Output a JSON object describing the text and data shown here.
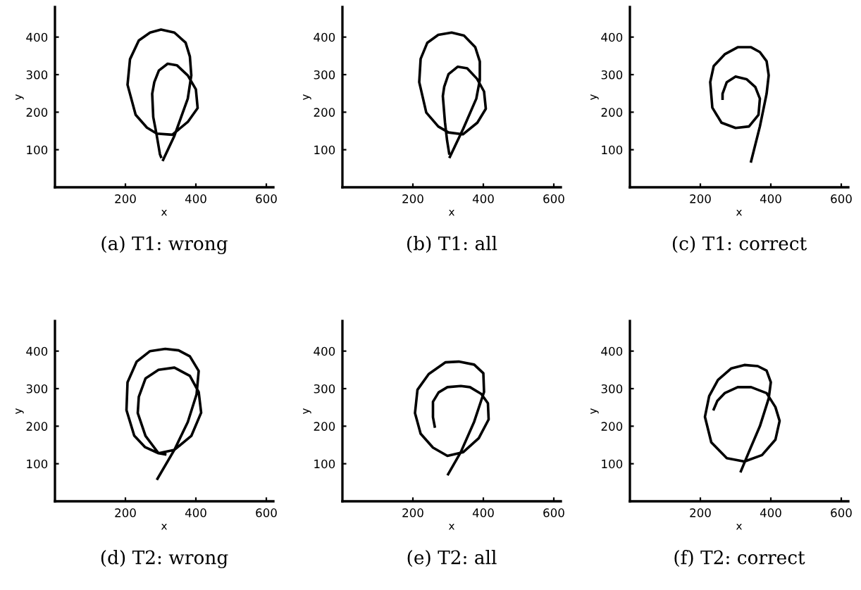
{
  "chart_data": [
    {
      "type": "line",
      "title": "(a) T1: wrong",
      "xlabel": "x",
      "ylabel": "y",
      "xlim": [
        0,
        620
      ],
      "ylim": [
        0,
        480
      ],
      "xticks": [
        200,
        400,
        600
      ],
      "yticks": [
        100,
        200,
        300,
        400
      ],
      "grid": false,
      "marker": "none",
      "line_style": "solid",
      "series": [
        {
          "color": "#000000",
          "x": [
            307,
            339,
            377,
            387,
            383,
            371,
            339,
            301,
            270,
            238,
            213,
            206,
            229,
            261,
            289,
            333,
            377,
            405,
            400,
            377,
            346,
            320,
            295,
            282,
            276,
            279,
            288,
            298,
            301
          ],
          "values": [
            73,
            137,
            236,
            298,
            348,
            385,
            412,
            420,
            412,
            391,
            341,
            273,
            193,
            159,
            143,
            140,
            174,
            211,
            261,
            298,
            325,
            329,
            311,
            280,
            249,
            187,
            143,
            88,
            81
          ]
        }
      ]
    },
    {
      "type": "line",
      "title": "(b) T1: all",
      "xlabel": "x",
      "ylabel": "y",
      "xlim": [
        0,
        620
      ],
      "ylim": [
        0,
        480
      ],
      "xticks": [
        200,
        400,
        600
      ],
      "yticks": [
        100,
        200,
        300,
        400
      ],
      "grid": false,
      "marker": "none",
      "line_style": "solid",
      "series": [
        {
          "color": "#000000",
          "x": [
            305,
            343,
            380,
            390,
            390,
            377,
            345,
            310,
            272,
            241,
            222,
            218,
            238,
            272,
            301,
            342,
            383,
            407,
            402,
            382,
            354,
            327,
            301,
            289,
            285,
            291,
            297,
            303
          ],
          "values": [
            81,
            156,
            236,
            286,
            335,
            373,
            404,
            412,
            406,
            385,
            342,
            280,
            199,
            162,
            146,
            141,
            172,
            209,
            255,
            289,
            317,
            321,
            301,
            268,
            243,
            174,
            125,
            90
          ]
        }
      ]
    },
    {
      "type": "line",
      "title": "(c) T1: correct",
      "xlabel": "x",
      "ylabel": "y",
      "xlim": [
        0,
        620
      ],
      "ylim": [
        0,
        480
      ],
      "xticks": [
        200,
        400,
        600
      ],
      "yticks": [
        100,
        200,
        300,
        400
      ],
      "grid": false,
      "marker": "none",
      "line_style": "solid",
      "series": [
        {
          "color": "#000000",
          "x": [
            344,
            369,
            388,
            394,
            388,
            369,
            344,
            306,
            269,
            238,
            228,
            234,
            260,
            300,
            338,
            365,
            369,
            356,
            331,
            300,
            275,
            263,
            263
          ],
          "values": [
            69,
            162,
            249,
            298,
            336,
            360,
            373,
            373,
            354,
            323,
            280,
            212,
            172,
            158,
            162,
            193,
            236,
            267,
            288,
            295,
            280,
            249,
            236
          ]
        }
      ]
    },
    {
      "type": "line",
      "title": "(d) T2: wrong",
      "xlabel": "x",
      "ylabel": "y",
      "xlim": [
        0,
        620
      ],
      "ylim": [
        0,
        480
      ],
      "xticks": [
        200,
        400,
        600
      ],
      "yticks": [
        100,
        200,
        300,
        400
      ],
      "grid": false,
      "marker": "none",
      "line_style": "solid",
      "series": [
        {
          "color": "#000000",
          "x": [
            291,
            339,
            377,
            402,
            408,
            383,
            351,
            313,
            270,
            232,
            206,
            203,
            225,
            256,
            294,
            339,
            387,
            415,
            408,
            383,
            339,
            294,
            257,
            238,
            235,
            257,
            294,
            313
          ],
          "values": [
            60,
            137,
            211,
            285,
            347,
            386,
            402,
            406,
            400,
            372,
            317,
            243,
            175,
            144,
            128,
            137,
            174,
            236,
            291,
            334,
            356,
            350,
            327,
            278,
            235,
            174,
            128,
            125
          ]
        }
      ]
    },
    {
      "type": "line",
      "title": "(e) T2: all",
      "xlabel": "x",
      "ylabel": "y",
      "xlim": [
        0,
        620
      ],
      "ylim": [
        0,
        480
      ],
      "xticks": [
        200,
        400,
        600
      ],
      "yticks": [
        100,
        200,
        300,
        400
      ],
      "grid": false,
      "marker": "none",
      "line_style": "solid",
      "series": [
        {
          "color": "#000000",
          "x": [
            300,
            336,
            374,
            402,
            400,
            374,
            330,
            292,
            245,
            213,
            206,
            222,
            257,
            298,
            343,
            387,
            415,
            413,
            394,
            362,
            336,
            298,
            273,
            257,
            257,
            262
          ],
          "values": [
            72,
            131,
            212,
            291,
            341,
            364,
            372,
            370,
            339,
            297,
            235,
            180,
            143,
            121,
            131,
            168,
            218,
            261,
            286,
            304,
            307,
            304,
            290,
            265,
            224,
            199
          ]
        }
      ]
    },
    {
      "type": "line",
      "title": "(f) T2: correct",
      "xlabel": "x",
      "ylabel": "y",
      "xlim": [
        0,
        620
      ],
      "ylim": [
        0,
        480
      ],
      "xticks": [
        200,
        400,
        600
      ],
      "yticks": [
        100,
        200,
        300,
        400
      ],
      "grid": false,
      "marker": "none",
      "line_style": "solid",
      "series": [
        {
          "color": "#000000",
          "x": [
            315,
            338,
            369,
            394,
            400,
            388,
            363,
            325,
            288,
            250,
            225,
            213,
            231,
            275,
            325,
            375,
            413,
            425,
            413,
            388,
            344,
            306,
            269,
            248,
            238
          ],
          "values": [
            80,
            132,
            200,
            274,
            317,
            348,
            360,
            363,
            354,
            323,
            280,
            225,
            157,
            115,
            106,
            123,
            164,
            214,
            251,
            288,
            304,
            304,
            288,
            267,
            245
          ]
        }
      ]
    }
  ]
}
